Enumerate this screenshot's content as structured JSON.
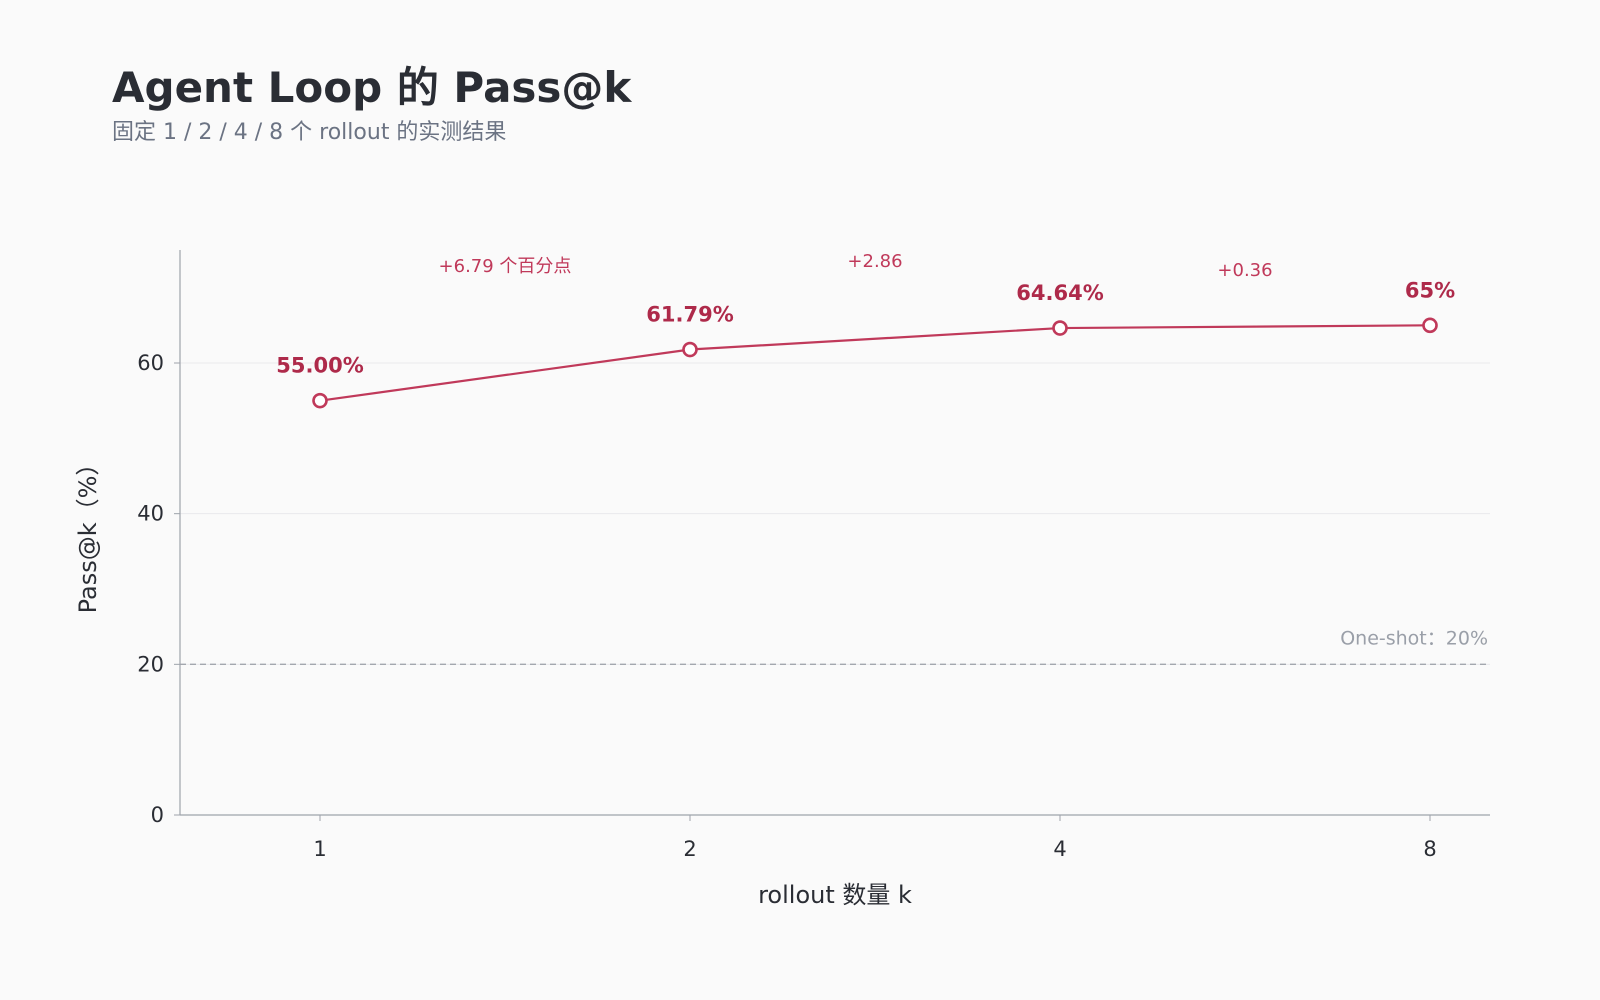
{
  "title": "Agent Loop 的 Pass@k",
  "subtitle": "固定 1 / 2 / 4 / 8 个 rollout 的实测结果",
  "colors": {
    "background": "#fafafa",
    "line": "#c0395a",
    "label": "#ae2a4a",
    "grid": "#e9e9ec",
    "axis": "#9ea3ab",
    "reference": "#a3a7ae"
  },
  "chart_data": {
    "type": "line",
    "categories": [
      "1",
      "2",
      "4",
      "8"
    ],
    "x": [
      1,
      2,
      4,
      8
    ],
    "xscale": "log2",
    "series": [
      {
        "values": [
          55.0,
          61.79,
          64.64,
          65
        ],
        "labels": [
          "55.00%",
          "61.79%",
          "64.64%",
          "65%"
        ],
        "marker": "hollow-circle"
      }
    ],
    "deltas": [
      {
        "between": [
          "1",
          "2"
        ],
        "text": "+6.79 个百分点"
      },
      {
        "between": [
          "2",
          "4"
        ],
        "text": "+2.86"
      },
      {
        "between": [
          "4",
          "8"
        ],
        "text": "+0.36"
      }
    ],
    "reference_line": {
      "value": 20,
      "label": "One-shot：20%",
      "style": "dashed"
    },
    "xlabel": "rollout 数量 k",
    "ylabel": "Pass@k（%）",
    "ylim": [
      0,
      75
    ],
    "yticks": [
      0,
      20,
      40,
      60
    ],
    "grid": true
  }
}
